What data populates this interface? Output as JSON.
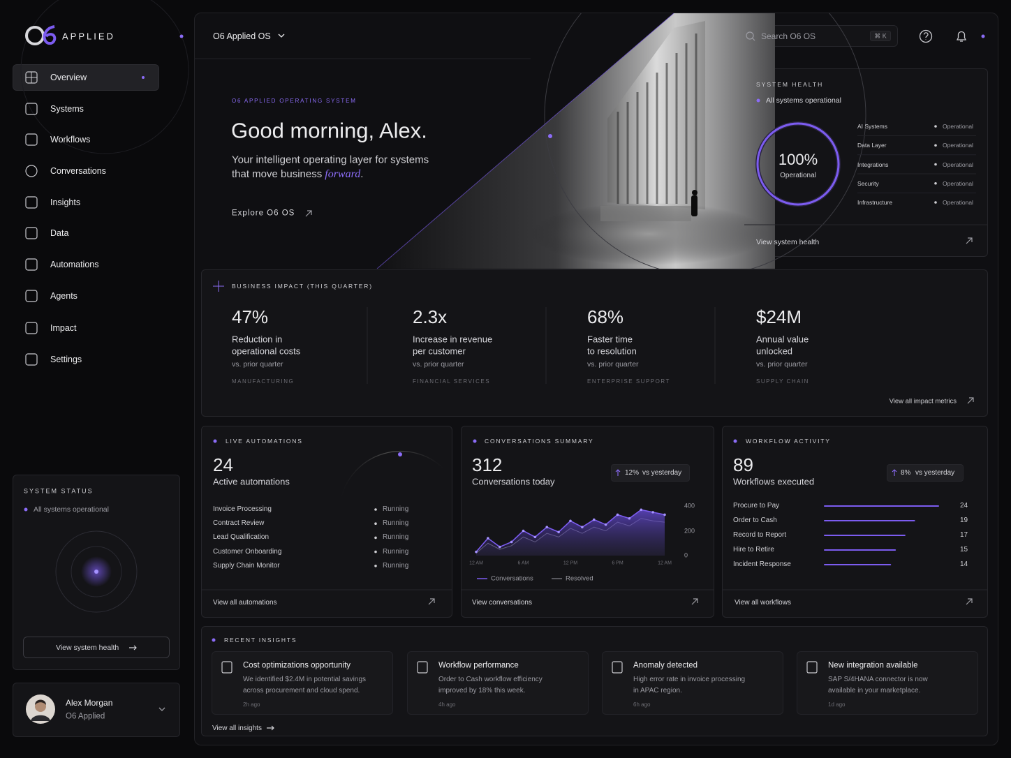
{
  "brand": {
    "name": "APPLIED"
  },
  "nav": [
    "Overview",
    "Systems",
    "Workflows",
    "Conversations",
    "Insights",
    "Data",
    "Automations",
    "Agents",
    "Impact",
    "Settings"
  ],
  "sidebar_status": {
    "title": "SYSTEM STATUS",
    "status": "All systems operational",
    "button": "View system health"
  },
  "user": {
    "name": "Alex Morgan",
    "org": "O6 Applied"
  },
  "topbar": {
    "workspace": "O6 Applied OS",
    "search": "Search O6 OS",
    "shortcut": "⌘ K"
  },
  "hero": {
    "eyebrow": "O6 APPLIED OPERATING SYSTEM",
    "title": "Good morning, Alex.",
    "subtitle_line1": "Your intelligent operating layer for systems",
    "subtitle_line2": "that move business",
    "emphasis": "forward",
    "end": ".",
    "cta": "Explore O6 OS"
  },
  "system_health": {
    "title": "SYSTEM HEALTH",
    "status": "All systems operational",
    "score": "100%",
    "score_label": "Operational",
    "components": [
      {
        "name": "AI Systems",
        "status": "Operational"
      },
      {
        "name": "Data Layer",
        "status": "Operational"
      },
      {
        "name": "Integrations",
        "status": "Operational"
      },
      {
        "name": "Security",
        "status": "Operational"
      },
      {
        "name": "Infrastructure",
        "status": "Operational"
      }
    ],
    "link": "View system health"
  },
  "business_impact": {
    "title": "BUSINESS IMPACT (THIS QUARTER)",
    "metrics": [
      {
        "value": "47%",
        "label": [
          "Reduction in",
          "operational costs"
        ],
        "comparison": "vs. prior quarter",
        "sector": "MANUFACTURING"
      },
      {
        "value": "2.3x",
        "label": [
          "Increase in revenue",
          "per customer"
        ],
        "comparison": "vs. prior quarter",
        "sector": "FINANCIAL SERVICES"
      },
      {
        "value": "68%",
        "label": [
          "Faster time",
          "to resolution"
        ],
        "comparison": "vs. prior quarter",
        "sector": "ENTERPRISE SUPPORT"
      },
      {
        "value": "$24M",
        "label": [
          "Annual value",
          "unlocked"
        ],
        "comparison": "vs. prior quarter",
        "sector": "SUPPLY CHAIN"
      }
    ],
    "link": "View all impact metrics"
  },
  "live_automations": {
    "title": "LIVE AUTOMATIONS",
    "count": 24,
    "label": "Active automations",
    "items": [
      {
        "name": "Invoice Processing",
        "status": "Running"
      },
      {
        "name": "Contract Review",
        "status": "Running"
      },
      {
        "name": "Lead Qualification",
        "status": "Running"
      },
      {
        "name": "Customer Onboarding",
        "status": "Running"
      },
      {
        "name": "Supply Chain Monitor",
        "status": "Running"
      }
    ],
    "link": "View all automations"
  },
  "conversations_summary": {
    "title": "CONVERSATIONS SUMMARY",
    "count": 312,
    "label": "Conversations today",
    "change": "12%",
    "change_label": "vs yesterday",
    "link": "View conversations"
  },
  "workflow_activity": {
    "title": "WORKFLOW ACTIVITY",
    "count": 89,
    "label": "Workflows executed",
    "change": "8%",
    "change_label": "vs yesterday",
    "link": "View all workflows"
  },
  "chart_data": [
    {
      "type": "area",
      "categories": [
        "12 AM",
        null,
        null,
        null,
        "6 AM",
        null,
        null,
        null,
        "12 PM",
        null,
        null,
        null,
        "6 PM",
        null,
        null,
        null,
        "12 AM"
      ],
      "series": [
        {
          "name": "Conversations",
          "color": "#7c5cf0",
          "values": [
            30,
            140,
            70,
            110,
            200,
            150,
            230,
            190,
            280,
            230,
            290,
            250,
            330,
            300,
            370,
            350,
            330
          ]
        },
        {
          "name": "Resolved",
          "color": "#6e6e76",
          "values": [
            20,
            100,
            50,
            80,
            150,
            110,
            180,
            150,
            220,
            180,
            230,
            200,
            270,
            240,
            300,
            280,
            270
          ]
        }
      ],
      "ylim": [
        0,
        400
      ],
      "yticks": [
        0,
        200,
        400
      ],
      "y_axis_side": "right",
      "grid": false
    },
    {
      "type": "bar",
      "orientation": "horizontal",
      "categories": [
        "Procure to Pay",
        "Order to Cash",
        "Record to Report",
        "Hire to Retire",
        "Incident Response"
      ],
      "values": [
        24,
        19,
        17,
        15,
        14
      ],
      "color": "#7c5cf0"
    }
  ],
  "recent_insights": {
    "title": "RECENT INSIGHTS",
    "items": [
      {
        "title": "Cost optimizations opportunity",
        "description": [
          "We identified $2.4M in potential savings",
          "across procurement and cloud spend."
        ],
        "time": "2h ago"
      },
      {
        "title": "Workflow performance",
        "description": [
          "Order to Cash workflow efficiency",
          "improved by 18% this week."
        ],
        "time": "4h ago"
      },
      {
        "title": "Anomaly detected",
        "description": [
          "High error rate in invoice processing",
          "in APAC region."
        ],
        "time": "6h ago"
      },
      {
        "title": "New integration available",
        "description": [
          "SAP S/4HANA connector is now",
          "available in your marketplace."
        ],
        "time": "1d ago"
      }
    ],
    "link": "View all insights"
  }
}
